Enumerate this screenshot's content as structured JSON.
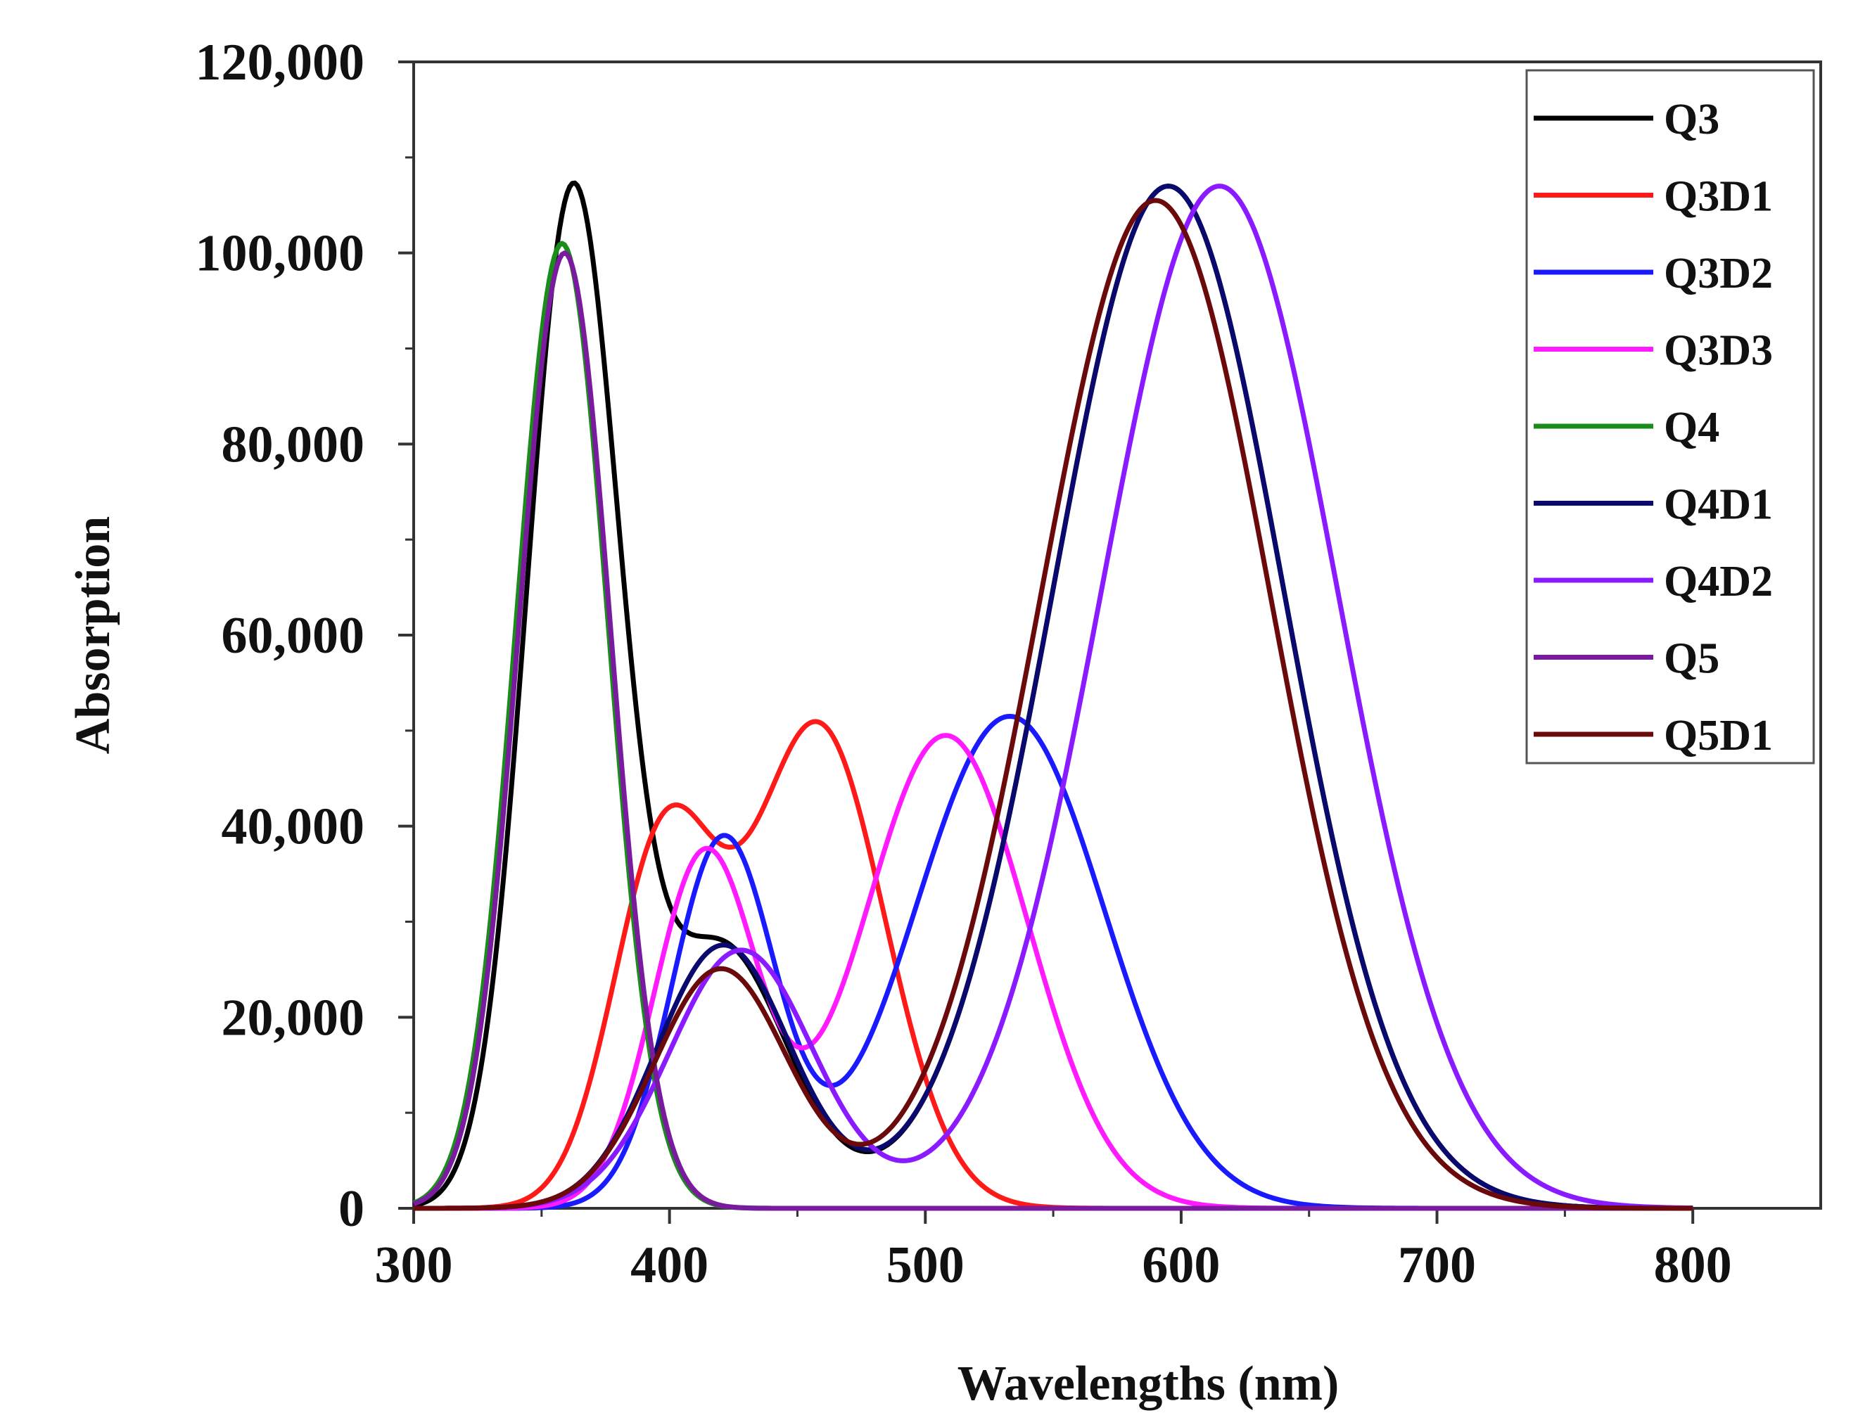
{
  "chart_data": {
    "type": "line",
    "title": "",
    "xlabel": "Wavelengths (nm)",
    "ylabel": "Absorption",
    "xlim": [
      300,
      850
    ],
    "ylim": [
      0,
      120000
    ],
    "x_ticks": [
      300,
      400,
      500,
      600,
      700,
      800
    ],
    "x_tick_labels": [
      "300",
      "400",
      "500",
      "600",
      "700",
      "800"
    ],
    "y_ticks": [
      0,
      20000,
      40000,
      60000,
      80000,
      100000,
      120000
    ],
    "y_tick_labels": [
      "0",
      "20,000",
      "40,000",
      "60,000",
      "80,000",
      "100,000",
      "120,000"
    ],
    "grid": false,
    "legend_position": "top-right",
    "x_range": [
      300,
      800
    ],
    "series": [
      {
        "name": "Q3",
        "color": "#000000",
        "peaks": [
          {
            "x": 362,
            "y": 105000,
            "w": 18
          },
          {
            "x": 420,
            "y": 27500,
            "w": 26
          },
          {
            "x": 595,
            "y": 107000,
            "w": 45
          }
        ]
      },
      {
        "name": "Q3D1",
        "color": "#ff1a1a",
        "peaks": [
          {
            "x": 398,
            "y": 38000,
            "w": 20
          },
          {
            "x": 458,
            "y": 50500,
            "w": 26
          }
        ]
      },
      {
        "name": "Q3D2",
        "color": "#1a1aff",
        "peaks": [
          {
            "x": 421,
            "y": 38500,
            "w": 20
          },
          {
            "x": 533,
            "y": 51500,
            "w": 37
          }
        ]
      },
      {
        "name": "Q3D3",
        "color": "#ff1aff",
        "peaks": [
          {
            "x": 414,
            "y": 37000,
            "w": 20
          },
          {
            "x": 508,
            "y": 49500,
            "w": 32
          }
        ]
      },
      {
        "name": "Q4",
        "color": "#1a8c1a",
        "peaks": [
          {
            "x": 358,
            "y": 101000,
            "w": 18
          },
          {
            "x": 420,
            "y": 0,
            "w": 26
          }
        ]
      },
      {
        "name": "Q4D1",
        "color": "#0a0a6e",
        "peaks": [
          {
            "x": 362,
            "y": 0,
            "w": 18
          },
          {
            "x": 421,
            "y": 27500,
            "w": 26
          },
          {
            "x": 595,
            "y": 107000,
            "w": 45
          }
        ]
      },
      {
        "name": "Q4D2",
        "color": "#8a1aff",
        "peaks": [
          {
            "x": 428,
            "y": 27000,
            "w": 28
          },
          {
            "x": 615,
            "y": 107000,
            "w": 46
          }
        ]
      },
      {
        "name": "Q5",
        "color": "#7a1a9e",
        "peaks": [
          {
            "x": 359,
            "y": 100000,
            "w": 18
          }
        ]
      },
      {
        "name": "Q5D1",
        "color": "#6b0a0a",
        "peaks": [
          {
            "x": 420,
            "y": 25000,
            "w": 26
          },
          {
            "x": 590,
            "y": 105500,
            "w": 45
          }
        ]
      }
    ]
  }
}
